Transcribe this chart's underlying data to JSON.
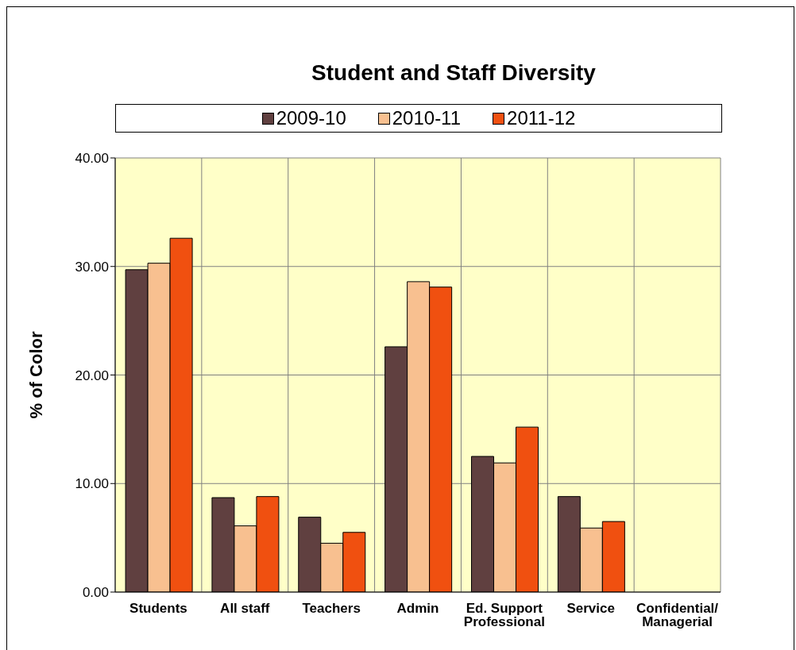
{
  "chart_data": {
    "type": "bar",
    "title": "Student and Staff Diversity",
    "ylabel": "% of Color",
    "categories": [
      "Students",
      "All staff",
      "Teachers",
      "Admin",
      "Ed. Support Professional",
      "Service",
      "Confidential/ Managerial"
    ],
    "series": [
      {
        "name": "2009-10",
        "color": "#604040",
        "values": [
          29.7,
          8.7,
          6.9,
          22.6,
          12.5,
          8.8,
          null
        ]
      },
      {
        "name": "2010-11",
        "color": "#f8c090",
        "values": [
          30.3,
          6.1,
          4.5,
          28.6,
          11.9,
          5.9,
          null
        ]
      },
      {
        "name": "2011-12",
        "color": "#f05010",
        "values": [
          32.6,
          8.8,
          5.5,
          28.1,
          15.2,
          6.5,
          null
        ]
      }
    ],
    "ylim": [
      0,
      40
    ],
    "yticks": [
      {
        "value": 0,
        "label": "0.00"
      },
      {
        "value": 10,
        "label": "10.00"
      },
      {
        "value": 20,
        "label": "20.00"
      },
      {
        "value": 30,
        "label": "30.00"
      },
      {
        "value": 40,
        "label": "40.00"
      }
    ],
    "grid": true,
    "legend": "top"
  }
}
